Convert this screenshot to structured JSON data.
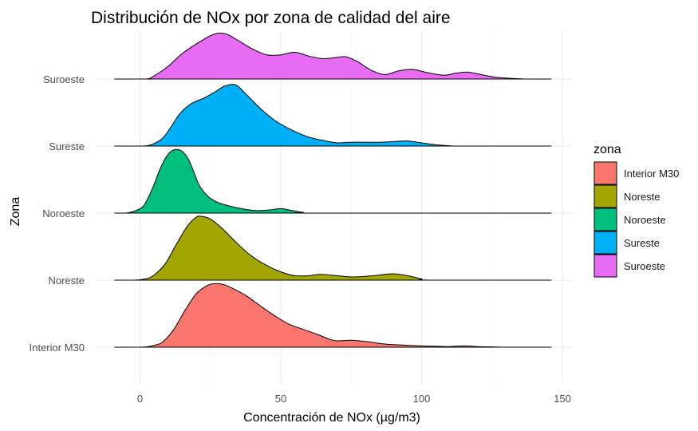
{
  "chart_data": {
    "type": "ridgeline",
    "title": "Distribución de NOx por zona de calidad del aire",
    "xlabel": "Concentración de NOx (µg/m3)",
    "ylabel": "Zona",
    "xlim": [
      -9,
      146
    ],
    "xticks": [
      0,
      50,
      100,
      150
    ],
    "grid": true,
    "legend": {
      "title": "zona",
      "position": "right"
    },
    "categories": [
      "Interior M30",
      "Noreste",
      "Noroeste",
      "Sureste",
      "Suroeste"
    ],
    "series": [
      {
        "name": "Interior M30",
        "color": "#F8766D",
        "x": [
          -9,
          0,
          3,
          5,
          8,
          12,
          16,
          20,
          24,
          27,
          30,
          33,
          38,
          43,
          48,
          53,
          58,
          63,
          67,
          70,
          75,
          80,
          85,
          90,
          95,
          100,
          105,
          110,
          115,
          120,
          125,
          130,
          146
        ],
        "y": [
          0,
          0,
          0.01,
          0.03,
          0.08,
          0.28,
          0.58,
          0.84,
          0.97,
          1.0,
          0.98,
          0.92,
          0.8,
          0.64,
          0.49,
          0.36,
          0.28,
          0.2,
          0.13,
          0.1,
          0.11,
          0.09,
          0.06,
          0.04,
          0.03,
          0.02,
          0.015,
          0.01,
          0.02,
          0.01,
          0.005,
          0.0,
          0
        ]
      },
      {
        "name": "Noreste",
        "color": "#A3A500",
        "x": [
          -9,
          -2,
          2,
          5,
          9,
          13,
          17,
          20,
          22,
          25,
          29,
          34,
          39,
          45,
          50,
          55,
          60,
          64,
          70,
          75,
          80,
          85,
          90,
          95,
          100,
          103,
          146
        ],
        "y": [
          0,
          0,
          0.02,
          0.08,
          0.26,
          0.57,
          0.86,
          0.99,
          1.0,
          0.96,
          0.82,
          0.6,
          0.4,
          0.23,
          0.13,
          0.07,
          0.07,
          0.09,
          0.07,
          0.05,
          0.06,
          0.08,
          0.1,
          0.07,
          0.02,
          0,
          0
        ]
      },
      {
        "name": "Noroeste",
        "color": "#00BF7D",
        "x": [
          -9,
          -5,
          -2,
          1,
          3,
          5,
          7,
          9,
          11,
          13,
          15,
          17,
          19,
          21,
          24,
          27,
          31,
          36,
          41,
          46,
          50,
          54,
          58,
          62,
          146
        ],
        "y": [
          0,
          0,
          0.03,
          0.1,
          0.25,
          0.45,
          0.68,
          0.86,
          0.97,
          1.0,
          0.97,
          0.86,
          0.66,
          0.44,
          0.27,
          0.18,
          0.12,
          0.07,
          0.04,
          0.05,
          0.07,
          0.04,
          0.01,
          0,
          0
        ]
      },
      {
        "name": "Sureste",
        "color": "#00B0F6",
        "x": [
          -9,
          0,
          3,
          5,
          8,
          11,
          14,
          18,
          23,
          27,
          30,
          34,
          38,
          43,
          48,
          54,
          60,
          66,
          70,
          75,
          80,
          85,
          90,
          95,
          100,
          105,
          110,
          115,
          146
        ],
        "y": [
          0,
          0.0,
          0.01,
          0.04,
          0.12,
          0.3,
          0.5,
          0.66,
          0.76,
          0.86,
          0.94,
          0.96,
          0.8,
          0.58,
          0.4,
          0.25,
          0.14,
          0.08,
          0.05,
          0.06,
          0.06,
          0.06,
          0.07,
          0.08,
          0.05,
          0.02,
          0.005,
          0,
          0
        ]
      },
      {
        "name": "Suroeste",
        "color": "#E76BF3",
        "x": [
          -9,
          2,
          5,
          10,
          15,
          20,
          25,
          28,
          31,
          35,
          40,
          45,
          50,
          55,
          60,
          65,
          70,
          73,
          77,
          82,
          87,
          92,
          97,
          102,
          108,
          112,
          116,
          120,
          126,
          132,
          138,
          146
        ],
        "y": [
          0,
          0,
          0.05,
          0.2,
          0.4,
          0.55,
          0.68,
          0.72,
          0.7,
          0.6,
          0.47,
          0.38,
          0.38,
          0.42,
          0.36,
          0.32,
          0.34,
          0.35,
          0.28,
          0.14,
          0.07,
          0.13,
          0.15,
          0.1,
          0.06,
          0.09,
          0.11,
          0.08,
          0.03,
          0.01,
          0.0,
          0
        ]
      }
    ]
  }
}
